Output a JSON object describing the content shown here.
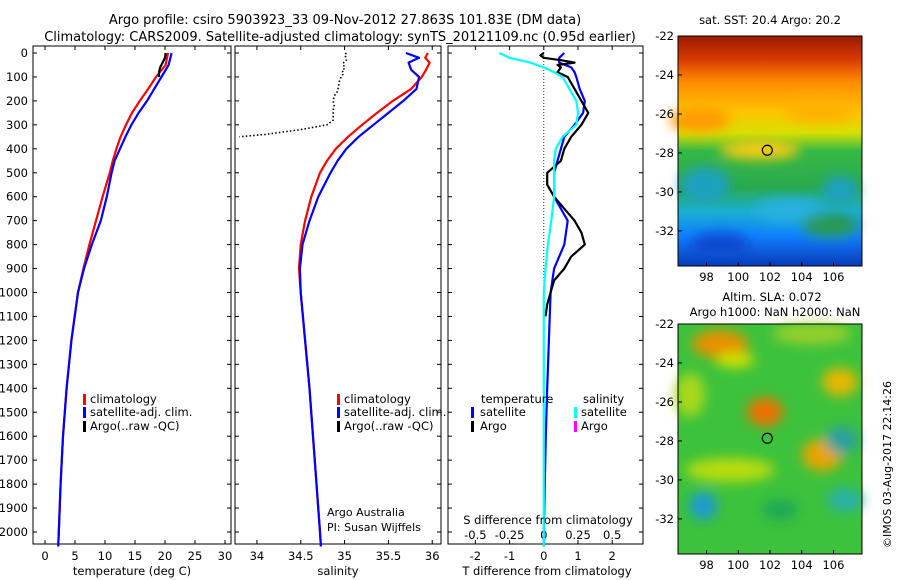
{
  "header": {
    "title_line1": "Argo profile: csiro 5903923_33 09-Nov-2012 27.863S 101.83E (DM data)",
    "title_line2": "Climatology: CARS2009. Satellite-adjusted climatology: synTS_20121109.nc (0.95d earlier)"
  },
  "colors": {
    "climatology": "#ff0000",
    "satellite": "#0000ff",
    "argo": "#000000",
    "sal_satellite": "#00ffff",
    "sal_argo": "#ff00ff"
  },
  "depth_ticks": [
    "0",
    "100",
    "200",
    "300",
    "400",
    "500",
    "600",
    "700",
    "800",
    "900",
    "1000",
    "1100",
    "1200",
    "1300",
    "1400",
    "1500",
    "1600",
    "1700",
    "1800",
    "1900",
    "2000"
  ],
  "chart_data": [
    {
      "type": "line",
      "panel": "temperature",
      "xlabel": "temperature (deg C)",
      "ylabel": "",
      "xlim": [
        -2,
        31
      ],
      "ylim": [
        2070,
        0
      ],
      "x_ticks": [
        "0",
        "5",
        "10",
        "15",
        "20",
        "25",
        "30"
      ],
      "legend": [
        "climatology",
        "satellite-adj. clim.",
        "Argo(..raw -QC)"
      ],
      "series": [
        {
          "name": "climatology",
          "color": "red",
          "depth": [
            0,
            50,
            100,
            150,
            200,
            250,
            300,
            350,
            400,
            450,
            500,
            600,
            700,
            800,
            900,
            1000,
            1200,
            1400,
            1600,
            1800,
            2000,
            2060
          ],
          "values": [
            20.5,
            20.1,
            18.5,
            17.2,
            15.8,
            14.5,
            13.5,
            12.6,
            11.9,
            11.3,
            10.8,
            9.6,
            8.5,
            7.4,
            6.4,
            5.5,
            4.4,
            3.6,
            3.0,
            2.6,
            2.3,
            2.2
          ]
        },
        {
          "name": "satellite-adj. clim.",
          "color": "blue",
          "depth": [
            0,
            50,
            100,
            150,
            200,
            250,
            300,
            350,
            400,
            450,
            500,
            600,
            700,
            800,
            900,
            1000,
            1200,
            1400,
            1600,
            1800,
            2000,
            2060
          ],
          "values": [
            21.1,
            20.6,
            19.4,
            18.2,
            17.0,
            15.6,
            14.4,
            13.4,
            12.5,
            11.6,
            11.1,
            10.3,
            9.3,
            7.8,
            6.5,
            5.5,
            4.4,
            3.6,
            3.0,
            2.6,
            2.3,
            2.2
          ]
        },
        {
          "name": "Argo(..raw -QC)",
          "color": "black",
          "depth": [
            0,
            20,
            40,
            60,
            80,
            100
          ],
          "values": [
            20.1,
            20.0,
            19.6,
            19.2,
            19.0,
            19.0
          ]
        }
      ]
    },
    {
      "type": "line",
      "panel": "salinity",
      "xlabel": "salinity",
      "ylabel": "",
      "xlim": [
        33.75,
        36.1
      ],
      "ylim": [
        2070,
        0
      ],
      "x_ticks": [
        "34",
        "34.5",
        "35",
        "35.5",
        "36"
      ],
      "legend": [
        "climatology",
        "satellite-adj. clim.",
        "Argo(..raw -QC)"
      ],
      "series": [
        {
          "name": "climatology",
          "color": "red",
          "depth": [
            0,
            20,
            40,
            70,
            100,
            150,
            200,
            250,
            300,
            350,
            400,
            450,
            500,
            600,
            700,
            800,
            900,
            1000,
            1200,
            1400,
            1600,
            1800,
            2000,
            2060
          ],
          "values": [
            35.95,
            35.92,
            35.97,
            35.93,
            35.88,
            35.76,
            35.55,
            35.37,
            35.2,
            35.04,
            34.9,
            34.8,
            34.72,
            34.62,
            34.55,
            34.5,
            34.48,
            34.5,
            34.55,
            34.6,
            34.64,
            34.68,
            34.72,
            34.73
          ]
        },
        {
          "name": "satellite-adj. clim.",
          "color": "blue",
          "depth": [
            0,
            20,
            40,
            70,
            100,
            150,
            200,
            250,
            300,
            350,
            400,
            450,
            500,
            600,
            700,
            800,
            900,
            1000,
            1200,
            1400,
            1600,
            1800,
            2000,
            2060
          ],
          "values": [
            35.7,
            35.85,
            35.73,
            35.76,
            35.85,
            35.82,
            35.67,
            35.5,
            35.33,
            35.16,
            35.02,
            34.92,
            34.84,
            34.7,
            34.6,
            34.52,
            34.49,
            34.5,
            34.55,
            34.6,
            34.64,
            34.68,
            34.72,
            34.73
          ]
        },
        {
          "name": "Argo(..raw -QC)",
          "color": "black",
          "style": "dotted",
          "depth": [
            0,
            10,
            20,
            30,
            40,
            50,
            60,
            70,
            80,
            90,
            100,
            120,
            140,
            160,
            180,
            200,
            220,
            240,
            260,
            280,
            300,
            320,
            340,
            350
          ],
          "values": [
            35.02,
            35.0,
            35.02,
            35.02,
            34.99,
            35.0,
            34.98,
            35.0,
            34.97,
            34.98,
            34.96,
            34.94,
            34.93,
            34.92,
            34.88,
            34.87,
            34.88,
            34.87,
            34.87,
            34.87,
            34.8,
            34.5,
            34.1,
            33.8
          ]
        }
      ]
    },
    {
      "type": "line",
      "panel": "difference",
      "xlabel": "T difference from climatology",
      "xlabel_top": "S difference from climatology",
      "ylabel": "",
      "xlim": [
        -2.8,
        2.9
      ],
      "ylim": [
        2070,
        0
      ],
      "x_ticks": [
        "-2",
        "-1",
        "0",
        "1",
        "2"
      ],
      "x_ticks_top": [
        "-0.5",
        "-0.25",
        "0",
        "0.25",
        "0.5"
      ],
      "legend_temp_title": "temperature",
      "legend_sal_title": "salinity",
      "legend": [
        "satellite",
        "Argo",
        "satellite",
        "Argo"
      ],
      "series": [
        {
          "name": "temperature satellite",
          "color": "blue",
          "depth": [
            0,
            20,
            40,
            60,
            80,
            100,
            150,
            200,
            250,
            300,
            350,
            400,
            450,
            500,
            600,
            700,
            800,
            900,
            1000,
            1200,
            1400,
            1600,
            1800,
            2000,
            2060
          ],
          "values": [
            0.6,
            0.45,
            0.45,
            0.8,
            0.9,
            0.95,
            1.05,
            1.2,
            1.15,
            0.9,
            0.6,
            0.5,
            0.4,
            0.3,
            0.3,
            0.7,
            0.6,
            0.3,
            0.2,
            0.15,
            0.1,
            0.06,
            0.03,
            0.0,
            0.0
          ]
        },
        {
          "name": "temperature Argo",
          "color": "black",
          "depth": [
            0,
            10,
            20,
            30,
            40,
            50,
            60,
            80,
            100,
            150,
            200,
            250,
            300,
            350,
            400,
            450,
            500,
            550,
            600,
            650,
            700,
            750,
            800,
            850,
            900,
            950,
            1000,
            1050,
            1100
          ],
          "values": [
            0.0,
            -0.1,
            0.0,
            0.5,
            0.9,
            0.4,
            0.5,
            0.4,
            0.7,
            0.9,
            1.1,
            1.3,
            1.1,
            0.8,
            0.6,
            0.5,
            0.1,
            0.1,
            0.3,
            0.6,
            0.9,
            1.1,
            1.2,
            0.8,
            0.6,
            0.3,
            0.2,
            0.1,
            0.05
          ]
        },
        {
          "name": "salinity satellite",
          "color": "cyan",
          "depth": [
            0,
            20,
            40,
            60,
            80,
            100,
            150,
            200,
            250,
            300,
            350,
            400,
            450,
            500,
            600,
            700,
            800,
            900,
            1000,
            1200,
            1400,
            1600,
            1800,
            2000,
            2060
          ],
          "values": [
            -1.3,
            -1.0,
            -0.4,
            0.0,
            0.3,
            0.55,
            0.75,
            0.95,
            1.0,
            0.95,
            0.55,
            0.35,
            0.3,
            0.3,
            0.3,
            0.22,
            0.12,
            0.05,
            0.0,
            0.0,
            0.0,
            0.0,
            0.0,
            0.0,
            0.0
          ]
        }
      ]
    },
    {
      "type": "heatmap",
      "panel": "sst_map",
      "title": "sat. SST: 20.4 Argo: 20.2",
      "x_ticks": [
        "98",
        "100",
        "102",
        "104",
        "106"
      ],
      "y_ticks": [
        "-22",
        "-24",
        "-26",
        "-28",
        "-30",
        "-32"
      ],
      "xlim": [
        96.2,
        107.8
      ],
      "ylim": [
        -33.8,
        -22
      ],
      "marker": {
        "lon": 101.83,
        "lat": -27.863
      }
    },
    {
      "type": "heatmap",
      "panel": "sla_map",
      "title": "Altim. SLA: 0.072",
      "subtitle": "Argo h1000: NaN h2000: NaN",
      "x_ticks": [
        "98",
        "100",
        "102",
        "104",
        "106"
      ],
      "y_ticks": [
        "-22",
        "-24",
        "-26",
        "-28",
        "-30",
        "-32"
      ],
      "xlim": [
        96.2,
        107.8
      ],
      "ylim": [
        -33.8,
        -22
      ],
      "marker": {
        "lon": 101.83,
        "lat": -27.863
      }
    }
  ],
  "credits": {
    "line1": "Argo Australia",
    "line2": "PI: Susan Wijffels",
    "stamp": "©IMOS 03-Aug-2017 22:14:26"
  }
}
